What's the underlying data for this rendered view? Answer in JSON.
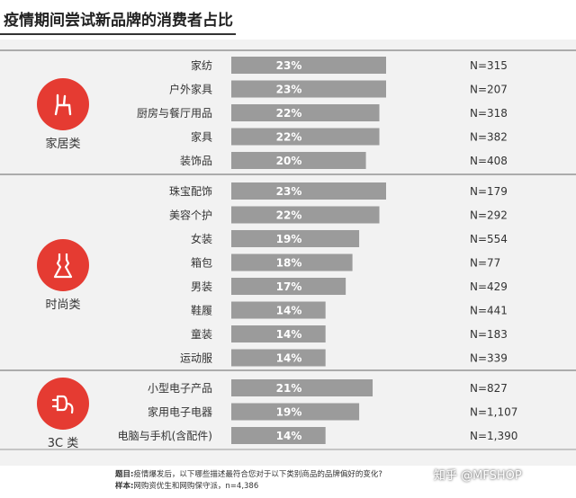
{
  "title": "疫情期间尝试新品牌的消费者占比",
  "chart_data": {
    "type": "bar",
    "orientation": "horizontal",
    "title": "疫情期间尝试新品牌的消费者占比",
    "xlim": [
      0,
      23
    ],
    "grid": false,
    "bar_color": "#9b9b9b",
    "accent_color": "#e53b32",
    "groups": [
      {
        "name": "家居类",
        "icon": "chair-icon",
        "categories": [
          "家纺",
          "户外家具",
          "厨房与餐厅用品",
          "家具",
          "装饰品"
        ],
        "values": [
          23,
          23,
          22,
          22,
          20
        ],
        "labels": [
          "23%",
          "23%",
          "22%",
          "22%",
          "20%"
        ],
        "n": [
          "N=315",
          "N=207",
          "N=318",
          "N=382",
          "N=408"
        ]
      },
      {
        "name": "时尚类",
        "icon": "dress-icon",
        "categories": [
          "珠宝配饰",
          "美容个护",
          "女装",
          "箱包",
          "男装",
          "鞋履",
          "童装",
          "运动服"
        ],
        "values": [
          23,
          22,
          19,
          18,
          17,
          14,
          14,
          14
        ],
        "labels": [
          "23%",
          "22%",
          "19%",
          "18%",
          "17%",
          "14%",
          "14%",
          "14%"
        ],
        "n": [
          "N=179",
          "N=292",
          "N=554",
          "N=77",
          "N=429",
          "N=441",
          "N=183",
          "N=339"
        ]
      },
      {
        "name": "3C 类",
        "icon": "plug-icon",
        "categories": [
          "小型电子产品",
          "家用电子电器",
          "电脑与手机(含配件)"
        ],
        "values": [
          21,
          19,
          14
        ],
        "labels": [
          "21%",
          "19%",
          "14%"
        ],
        "n": [
          "N=827",
          "N=1,107",
          "N=1,390"
        ]
      }
    ]
  },
  "footnote": {
    "question_label": "题目:",
    "question": "疫情爆发后，以下哪些描述最符合您对于以下类别商品的品牌偏好的变化?",
    "sample_label": "样本:",
    "sample": "网购资优生和网购保守派，n=4,386"
  },
  "watermark": "知乎 @MFSHOP"
}
